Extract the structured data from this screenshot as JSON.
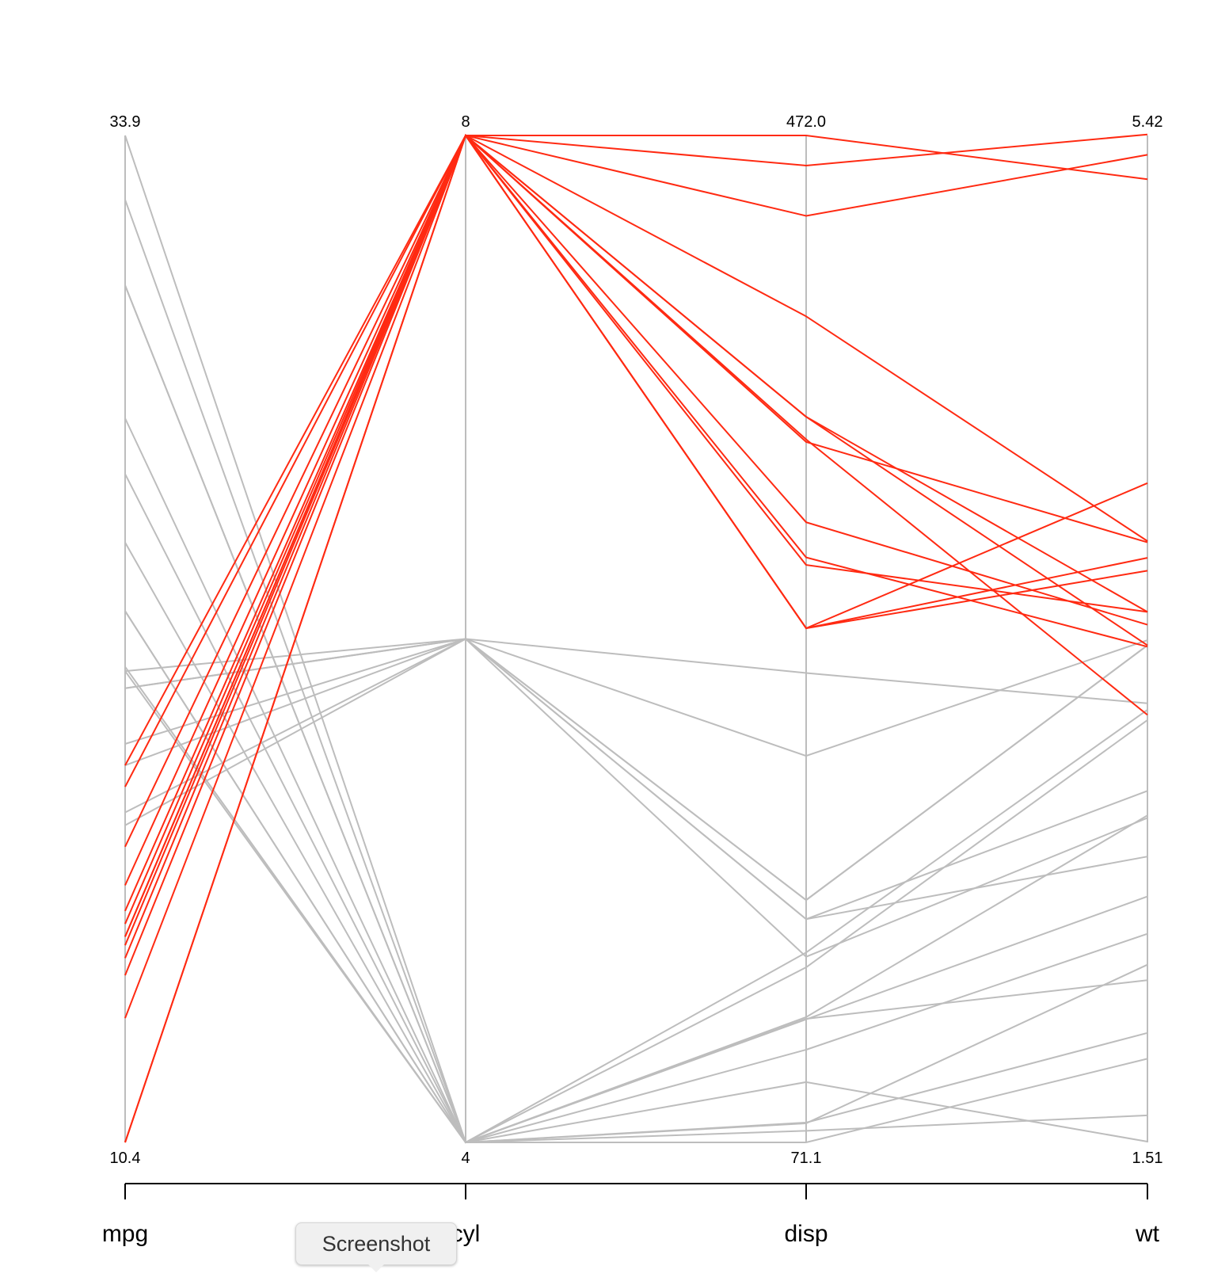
{
  "chart_data": {
    "type": "parallel-coordinates",
    "axes": [
      {
        "name": "mpg",
        "min": 10.4,
        "max": 33.9,
        "min_label": "10.4",
        "max_label": "33.9"
      },
      {
        "name": "cyl",
        "min": 4,
        "max": 8,
        "min_label": "4",
        "max_label": "8"
      },
      {
        "name": "disp",
        "min": 71.1,
        "max": 472.0,
        "min_label": "71.1",
        "max_label": "472.0"
      },
      {
        "name": "wt",
        "min": 1.51,
        "max": 5.42,
        "min_label": "1.51",
        "max_label": "5.42"
      }
    ],
    "highlight_color": "#ff2a12",
    "base_color": "#bdbdbd",
    "lines": [
      {
        "mpg": 21.0,
        "cyl": 6,
        "disp": 160.0,
        "wt": 2.62,
        "highlight": false
      },
      {
        "mpg": 21.0,
        "cyl": 6,
        "disp": 160.0,
        "wt": 2.875,
        "highlight": false
      },
      {
        "mpg": 22.8,
        "cyl": 4,
        "disp": 108.0,
        "wt": 2.32,
        "highlight": false
      },
      {
        "mpg": 21.4,
        "cyl": 6,
        "disp": 258.0,
        "wt": 3.215,
        "highlight": false
      },
      {
        "mpg": 18.7,
        "cyl": 8,
        "disp": 360.0,
        "wt": 3.44,
        "highlight": true
      },
      {
        "mpg": 18.1,
        "cyl": 6,
        "disp": 225.0,
        "wt": 3.46,
        "highlight": false
      },
      {
        "mpg": 14.3,
        "cyl": 8,
        "disp": 360.0,
        "wt": 3.57,
        "highlight": true
      },
      {
        "mpg": 24.4,
        "cyl": 4,
        "disp": 146.7,
        "wt": 3.19,
        "highlight": false
      },
      {
        "mpg": 22.8,
        "cyl": 4,
        "disp": 140.8,
        "wt": 3.15,
        "highlight": false
      },
      {
        "mpg": 19.2,
        "cyl": 6,
        "disp": 167.6,
        "wt": 3.44,
        "highlight": false
      },
      {
        "mpg": 17.8,
        "cyl": 6,
        "disp": 167.6,
        "wt": 3.44,
        "highlight": false
      },
      {
        "mpg": 16.4,
        "cyl": 8,
        "disp": 275.8,
        "wt": 4.07,
        "highlight": true
      },
      {
        "mpg": 17.3,
        "cyl": 8,
        "disp": 275.8,
        "wt": 3.73,
        "highlight": true
      },
      {
        "mpg": 15.2,
        "cyl": 8,
        "disp": 275.8,
        "wt": 3.78,
        "highlight": true
      },
      {
        "mpg": 10.4,
        "cyl": 8,
        "disp": 472.0,
        "wt": 5.25,
        "highlight": true
      },
      {
        "mpg": 10.4,
        "cyl": 8,
        "disp": 460.0,
        "wt": 5.424,
        "highlight": true
      },
      {
        "mpg": 14.7,
        "cyl": 8,
        "disp": 440.0,
        "wt": 5.345,
        "highlight": true
      },
      {
        "mpg": 32.4,
        "cyl": 4,
        "disp": 78.7,
        "wt": 2.2,
        "highlight": false
      },
      {
        "mpg": 30.4,
        "cyl": 4,
        "disp": 75.7,
        "wt": 1.615,
        "highlight": false
      },
      {
        "mpg": 33.9,
        "cyl": 4,
        "disp": 71.1,
        "wt": 1.835,
        "highlight": false
      },
      {
        "mpg": 21.5,
        "cyl": 4,
        "disp": 120.1,
        "wt": 2.465,
        "highlight": false
      },
      {
        "mpg": 15.5,
        "cyl": 8,
        "disp": 318.0,
        "wt": 3.52,
        "highlight": true
      },
      {
        "mpg": 15.2,
        "cyl": 8,
        "disp": 304.0,
        "wt": 3.435,
        "highlight": true
      },
      {
        "mpg": 13.3,
        "cyl": 8,
        "disp": 350.0,
        "wt": 3.84,
        "highlight": true
      },
      {
        "mpg": 19.2,
        "cyl": 8,
        "disp": 400.0,
        "wt": 3.845,
        "highlight": true
      },
      {
        "mpg": 27.3,
        "cyl": 4,
        "disp": 79.0,
        "wt": 1.935,
        "highlight": false
      },
      {
        "mpg": 26.0,
        "cyl": 4,
        "disp": 120.3,
        "wt": 2.14,
        "highlight": false
      },
      {
        "mpg": 30.4,
        "cyl": 4,
        "disp": 95.1,
        "wt": 1.513,
        "highlight": false
      },
      {
        "mpg": 15.8,
        "cyl": 8,
        "disp": 351.0,
        "wt": 3.17,
        "highlight": true
      },
      {
        "mpg": 19.7,
        "cyl": 6,
        "disp": 145.0,
        "wt": 2.77,
        "highlight": false
      },
      {
        "mpg": 15.0,
        "cyl": 8,
        "disp": 301.0,
        "wt": 3.57,
        "highlight": true
      },
      {
        "mpg": 21.4,
        "cyl": 4,
        "disp": 121.0,
        "wt": 2.78,
        "highlight": false
      }
    ]
  },
  "tooltip": {
    "text": "Screenshot"
  }
}
